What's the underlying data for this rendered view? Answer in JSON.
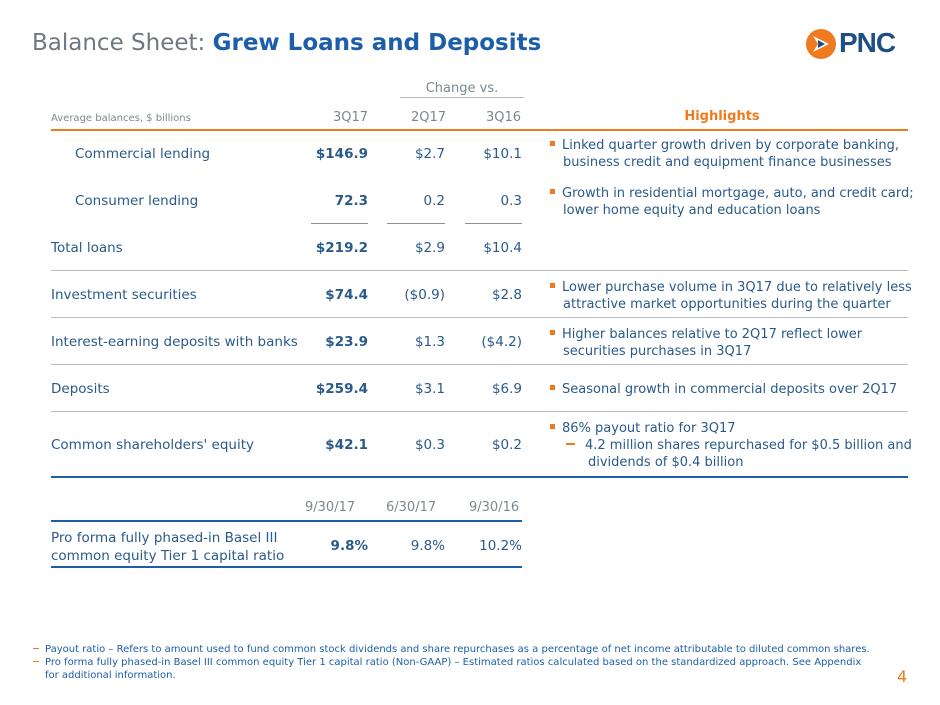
{
  "title": {
    "prefix": "Balance Sheet:",
    "main": "Grew Loans and Deposits"
  },
  "logo": {
    "text": "PNC",
    "icon": "pnc-mark-icon"
  },
  "table": {
    "change_header": "Change vs.",
    "label_header": "Average balances, $ billions",
    "columns": [
      "3Q17",
      "2Q17",
      "3Q16"
    ],
    "highlights_header": "Highlights",
    "rows": [
      {
        "label": "Commercial lending",
        "v1": "$146.9",
        "v2": "$2.7",
        "v3": "$10.1"
      },
      {
        "label": "Consumer lending",
        "v1": "72.3",
        "v2": "0.2",
        "v3": "0.3"
      },
      {
        "label": "Total loans",
        "v1": "$219.2",
        "v2": "$2.9",
        "v3": "$10.4"
      },
      {
        "label": "Investment securities",
        "v1": "$74.4",
        "v2": "($0.9)",
        "v3": "$2.8"
      },
      {
        "label": "Interest-earning deposits with banks",
        "v1": "$23.9",
        "v2": "$1.3",
        "v3": "($4.2)"
      },
      {
        "label": "Deposits",
        "v1": "$259.4",
        "v2": "$3.1",
        "v3": "$6.9"
      },
      {
        "label": "Common shareholders' equity",
        "v1": "$42.1",
        "v2": "$0.3",
        "v3": "$0.2"
      }
    ],
    "highlights": {
      "commercial": [
        "Linked quarter growth driven by corporate banking,",
        "business credit and equipment finance businesses"
      ],
      "consumer": [
        "Growth in residential mortgage, auto, and credit card;",
        "lower home equity and education loans"
      ],
      "investment": [
        "Lower purchase volume in 3Q17 due to relatively less",
        "attractive market opportunities during the quarter"
      ],
      "interest": [
        "Higher balances relative to 2Q17 reflect lower",
        "securities purchases in 3Q17"
      ],
      "deposits": [
        "Seasonal growth in commercial deposits over 2Q17"
      ],
      "equity": [
        "86% payout ratio for 3Q17"
      ],
      "equity_sub": [
        "4.2 million shares repurchased for $0.5 billion and",
        "dividends of $0.4 billion"
      ]
    }
  },
  "capital": {
    "columns": [
      "9/30/17",
      "6/30/17",
      "9/30/16"
    ],
    "label": [
      "Pro forma fully phased-in Basel III",
      "common equity Tier 1 capital ratio"
    ],
    "v1": "9.8%",
    "v2": "9.8%",
    "v3": "10.2%"
  },
  "footnotes": [
    "Payout ratio – Refers to amount used to fund common stock dividends and share repurchases as a percentage of net income attributable to diluted common shares.",
    "Pro forma fully phased-in Basel III common equity Tier 1 capital ratio (Non-GAAP) – Estimated ratios calculated based on the standardized approach. See Appendix",
    "for additional information."
  ],
  "page_number": "4",
  "colors": {
    "orange": "#f07b1e",
    "blue": "#1d5ea8",
    "text": "#2a5a8a",
    "gray": "#7d8790"
  }
}
